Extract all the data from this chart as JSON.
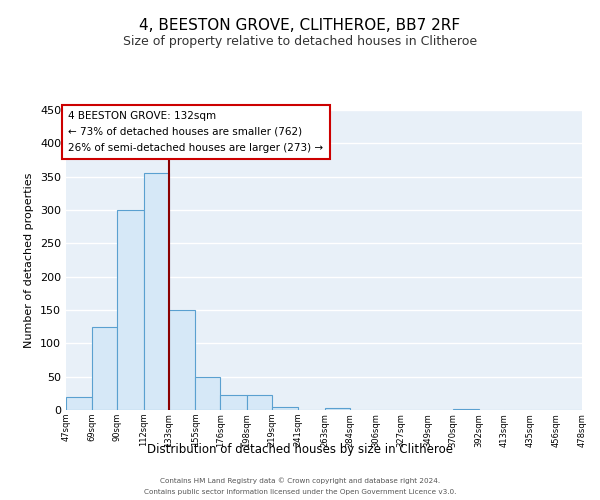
{
  "title": "4, BEESTON GROVE, CLITHEROE, BB7 2RF",
  "subtitle": "Size of property relative to detached houses in Clitheroe",
  "xlabel": "Distribution of detached houses by size in Clitheroe",
  "ylabel": "Number of detached properties",
  "bin_edges": [
    47,
    69,
    90,
    112,
    133,
    155,
    176,
    198,
    219,
    241,
    263,
    284,
    306,
    327,
    349,
    370,
    392,
    413,
    435,
    456,
    478
  ],
  "bar_heights": [
    20,
    125,
    300,
    355,
    150,
    50,
    23,
    23,
    5,
    0,
    3,
    0,
    0,
    0,
    0,
    1,
    0,
    0,
    0,
    0
  ],
  "bar_facecolor": "#d6e8f7",
  "bar_edgecolor": "#5aa0d0",
  "vline_x": 133,
  "vline_color": "#8b0000",
  "annotation_title": "4 BEESTON GROVE: 132sqm",
  "annotation_line1": "← 73% of detached houses are smaller (762)",
  "annotation_line2": "26% of semi-detached houses are larger (273) →",
  "annotation_box_facecolor": "#ffffff",
  "annotation_box_edgecolor": "#cc0000",
  "ylim": [
    0,
    450
  ],
  "yticks": [
    0,
    50,
    100,
    150,
    200,
    250,
    300,
    350,
    400,
    450
  ],
  "background_color": "#e8f0f8",
  "grid_color": "#ffffff",
  "footer_line1": "Contains HM Land Registry data © Crown copyright and database right 2024.",
  "footer_line2": "Contains public sector information licensed under the Open Government Licence v3.0.",
  "title_fontsize": 11,
  "subtitle_fontsize": 9
}
